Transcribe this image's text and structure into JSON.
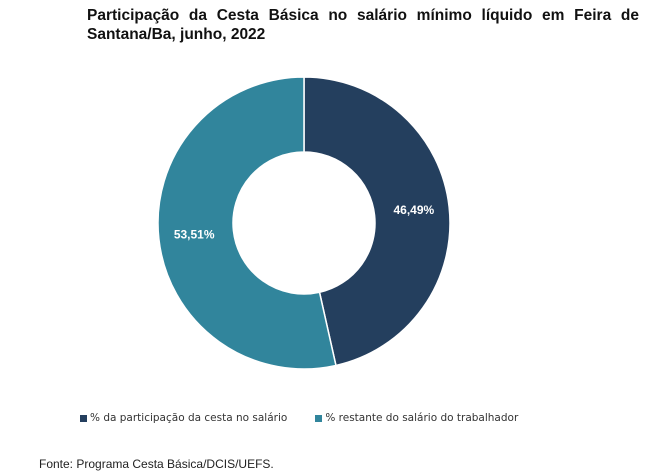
{
  "title": "Participação da Cesta Básica no salário mínimo líquido em Feira de Santana/Ba, junho, 2022",
  "source": "Fonte: Programa Cesta Básica/DCIS/UEFS.",
  "chart_data": {
    "type": "pie",
    "donut": true,
    "title": "Participação da Cesta Básica no salário mínimo líquido em Feira de Santana/Ba, junho, 2022",
    "legend_placement": "bottom",
    "slices": [
      {
        "name": "% da participação da cesta no salário",
        "value": 46.49,
        "label": "46,49%",
        "color": "#243f5e"
      },
      {
        "name": "% restante do salário do trabalhador",
        "value": 53.51,
        "label": "53,51%",
        "color": "#31859c"
      }
    ]
  }
}
